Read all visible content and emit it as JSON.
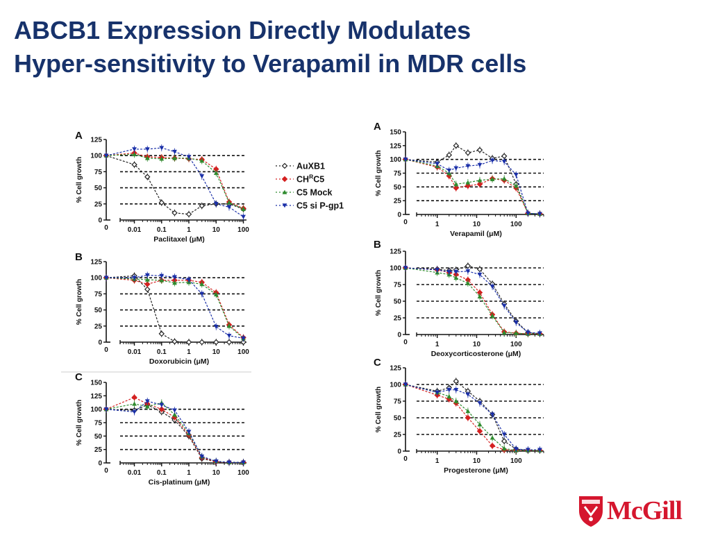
{
  "title": {
    "line1": "ABCB1 Expression Directly Modulates",
    "line2": "Hyper-sensitivity to Verapamil in MDR cells"
  },
  "legend": [
    {
      "label": "AuXB1",
      "label_sup": "",
      "label_after": "",
      "marker": "diamond-open",
      "color": "#222222"
    },
    {
      "label": "CH",
      "label_sup": "R",
      "label_after": "C5",
      "marker": "diamond",
      "color": "#d42020"
    },
    {
      "label": "C5 Mock",
      "label_sup": "",
      "label_after": "",
      "marker": "triangle-up",
      "color": "#2e8b2e"
    },
    {
      "label": "C5 si P-gp1",
      "label_sup": "",
      "label_after": "",
      "marker": "triangle-down",
      "color": "#1a2fa8"
    }
  ],
  "logo": {
    "text": "McGill",
    "color": "#d5162e"
  },
  "chart_data": [
    {
      "type": "line",
      "panel": "A",
      "xlabel": "Paclitaxel (μM)",
      "ylabel": "% Cell growth",
      "xscale": "log",
      "xlim": [
        0.003,
        130
      ],
      "ylim": [
        0,
        125
      ],
      "x_ticks": [
        0.01,
        0.1,
        1,
        10,
        100
      ],
      "x_tick_labels": [
        "0.01",
        "0.1",
        "1",
        "10",
        "100"
      ],
      "zero_tick_label": "0",
      "y_ticks": [
        0,
        25,
        50,
        75,
        100,
        125
      ],
      "grid_lines_y": [
        25,
        50,
        75,
        100
      ],
      "series": [
        {
          "x": [
            0,
            0.01,
            0.03,
            0.1,
            0.3,
            1,
            3,
            10,
            30,
            100
          ],
          "values": [
            100,
            86,
            67,
            27,
            11,
            9,
            22,
            25,
            25,
            17
          ]
        },
        {
          "x": [
            0,
            0.01,
            0.03,
            0.1,
            0.3,
            1,
            3,
            10,
            30,
            100
          ],
          "values": [
            100,
            104,
            98,
            97,
            96,
            95,
            94,
            79,
            28,
            18
          ]
        },
        {
          "x": [
            0,
            0.01,
            0.03,
            0.1,
            0.3,
            1,
            3,
            10,
            30,
            100
          ],
          "values": [
            100,
            102,
            96,
            95,
            96,
            96,
            92,
            73,
            27,
            17
          ]
        },
        {
          "x": [
            0,
            0.01,
            0.03,
            0.1,
            0.3,
            1,
            3,
            10,
            30,
            100
          ],
          "values": [
            100,
            110,
            110,
            112,
            106,
            98,
            68,
            25,
            20,
            5
          ]
        }
      ]
    },
    {
      "type": "line",
      "panel": "B",
      "xlabel": "Doxorubicin (μM)",
      "ylabel": "% Cell growth",
      "xscale": "log",
      "xlim": [
        0.003,
        130
      ],
      "ylim": [
        0,
        125
      ],
      "x_ticks": [
        0.01,
        0.1,
        1,
        10,
        100
      ],
      "x_tick_labels": [
        "0.01",
        "0.1",
        "1",
        "10",
        "100"
      ],
      "zero_tick_label": "0",
      "y_ticks": [
        0,
        25,
        50,
        75,
        100,
        125
      ],
      "grid_lines_y": [
        25,
        50,
        75,
        100
      ],
      "series": [
        {
          "x": [
            0,
            0.01,
            0.03,
            0.1,
            0.3,
            1,
            3,
            10,
            30,
            100
          ],
          "values": [
            100,
            103,
            82,
            13,
            1,
            0,
            0,
            0,
            0,
            0
          ]
        },
        {
          "x": [
            0,
            0.01,
            0.03,
            0.1,
            0.3,
            1,
            3,
            10,
            30,
            100
          ],
          "values": [
            100,
            96,
            90,
            96,
            96,
            96,
            93,
            77,
            27,
            7
          ]
        },
        {
          "x": [
            0,
            0.01,
            0.03,
            0.1,
            0.3,
            1,
            3,
            10,
            30,
            100
          ],
          "values": [
            100,
            98,
            97,
            96,
            92,
            93,
            90,
            74,
            25,
            6
          ]
        },
        {
          "x": [
            0,
            0.01,
            0.03,
            0.1,
            0.3,
            1,
            3,
            10,
            30,
            100
          ],
          "values": [
            100,
            100,
            104,
            103,
            101,
            97,
            75,
            24,
            10,
            6
          ]
        }
      ]
    },
    {
      "type": "line",
      "panel": "C",
      "xlabel": "Cis-platinum (μM)",
      "ylabel": "% Cell growth",
      "xscale": "log",
      "xlim": [
        0.003,
        130
      ],
      "ylim": [
        0,
        150
      ],
      "x_ticks": [
        0.01,
        0.1,
        1,
        10,
        100
      ],
      "x_tick_labels": [
        "0.01",
        "0.1",
        "1",
        "10",
        "100"
      ],
      "zero_tick_label": "0",
      "y_ticks": [
        0,
        25,
        50,
        75,
        100,
        125,
        150
      ],
      "grid_lines_y": [
        25,
        50,
        75,
        100
      ],
      "series": [
        {
          "x": [
            0,
            0.01,
            0.03,
            0.1,
            0.3,
            1,
            3,
            10,
            30,
            100
          ],
          "values": [
            100,
            98,
            108,
            95,
            80,
            50,
            8,
            2,
            1,
            1
          ]
        },
        {
          "x": [
            0,
            0.01,
            0.03,
            0.1,
            0.3,
            1,
            3,
            10,
            30,
            100
          ],
          "values": [
            100,
            122,
            110,
            100,
            85,
            52,
            10,
            2,
            1,
            1
          ]
        },
        {
          "x": [
            0,
            0.01,
            0.03,
            0.1,
            0.3,
            1,
            3,
            10,
            30,
            100
          ],
          "values": [
            100,
            110,
            105,
            112,
            90,
            55,
            12,
            3,
            1,
            1
          ]
        },
        {
          "x": [
            0,
            0.01,
            0.03,
            0.1,
            0.3,
            1,
            3,
            10,
            30,
            100
          ],
          "values": [
            100,
            95,
            115,
            108,
            98,
            58,
            12,
            3,
            1,
            1
          ]
        }
      ]
    },
    {
      "type": "line",
      "panel": "A",
      "xlabel": "Verapamil (μM)",
      "ylabel": "% Cell growth",
      "xscale": "log",
      "xlim": [
        0.3,
        500
      ],
      "ylim": [
        0,
        150
      ],
      "x_ticks": [
        1,
        10,
        100
      ],
      "x_tick_labels": [
        "1",
        "10",
        "100"
      ],
      "zero_tick_label": "0",
      "y_ticks": [
        0,
        25,
        50,
        75,
        100,
        125,
        150
      ],
      "grid_lines_y": [
        25,
        50,
        75,
        100
      ],
      "series": [
        {
          "x": [
            0,
            1,
            2,
            3,
            6,
            12,
            25,
            50,
            100,
            200,
            400
          ],
          "values": [
            100,
            95,
            108,
            125,
            112,
            117,
            102,
            106,
            55,
            2,
            1
          ]
        },
        {
          "x": [
            0,
            1,
            2,
            3,
            6,
            12,
            25,
            50,
            100,
            200,
            400
          ],
          "values": [
            100,
            86,
            70,
            48,
            52,
            55,
            65,
            62,
            48,
            2,
            1
          ]
        },
        {
          "x": [
            0,
            1,
            2,
            3,
            6,
            12,
            25,
            50,
            100,
            200,
            400
          ],
          "values": [
            100,
            88,
            75,
            55,
            58,
            62,
            64,
            65,
            52,
            2,
            1
          ]
        },
        {
          "x": [
            0,
            1,
            2,
            3,
            6,
            12,
            25,
            50,
            100,
            200,
            400
          ],
          "values": [
            100,
            92,
            80,
            84,
            88,
            90,
            98,
            96,
            72,
            2,
            1
          ]
        }
      ]
    },
    {
      "type": "line",
      "panel": "B",
      "xlabel": "Deoxycorticosterone (μM)",
      "ylabel": "% Cell growth",
      "xscale": "log",
      "xlim": [
        0.3,
        500
      ],
      "ylim": [
        0,
        125
      ],
      "x_ticks": [
        1,
        10,
        100
      ],
      "x_tick_labels": [
        "1",
        "10",
        "100"
      ],
      "zero_tick_label": "0",
      "y_ticks": [
        0,
        25,
        50,
        75,
        100,
        125
      ],
      "grid_lines_y": [
        25,
        50,
        75,
        100
      ],
      "series": [
        {
          "x": [
            0,
            1,
            2,
            3,
            6,
            12,
            25,
            50,
            100,
            200,
            400
          ],
          "values": [
            100,
            98,
            96,
            97,
            103,
            98,
            76,
            46,
            20,
            3,
            1
          ]
        },
        {
          "x": [
            0,
            1,
            2,
            3,
            6,
            12,
            25,
            50,
            100,
            200,
            400
          ],
          "values": [
            100,
            97,
            93,
            90,
            82,
            63,
            30,
            4,
            2,
            1,
            1
          ]
        },
        {
          "x": [
            0,
            1,
            2,
            3,
            6,
            12,
            25,
            50,
            100,
            200,
            400
          ],
          "values": [
            100,
            93,
            90,
            85,
            77,
            57,
            28,
            3,
            2,
            1,
            1
          ]
        },
        {
          "x": [
            0,
            1,
            2,
            3,
            6,
            12,
            25,
            50,
            100,
            200,
            400
          ],
          "values": [
            100,
            97,
            94,
            94,
            95,
            90,
            72,
            43,
            18,
            3,
            2
          ]
        }
      ]
    },
    {
      "type": "line",
      "panel": "C",
      "xlabel": "Progesterone (μM)",
      "ylabel": "% Cell growth",
      "xscale": "log",
      "xlim": [
        0.3,
        500
      ],
      "ylim": [
        0,
        125
      ],
      "x_ticks": [
        1,
        10,
        100
      ],
      "x_tick_labels": [
        "1",
        "10",
        "100"
      ],
      "zero_tick_label": "0",
      "y_ticks": [
        0,
        25,
        50,
        75,
        100,
        125
      ],
      "grid_lines_y": [
        25,
        50,
        75,
        100
      ],
      "series": [
        {
          "x": [
            0,
            1,
            2,
            3,
            6,
            12,
            25,
            50,
            100,
            200,
            400
          ],
          "values": [
            100,
            90,
            95,
            105,
            90,
            75,
            55,
            15,
            3,
            1,
            1
          ]
        },
        {
          "x": [
            0,
            1,
            2,
            3,
            6,
            12,
            25,
            50,
            100,
            200,
            400
          ],
          "values": [
            100,
            84,
            78,
            72,
            50,
            30,
            8,
            2,
            1,
            1,
            1
          ]
        },
        {
          "x": [
            0,
            1,
            2,
            3,
            6,
            12,
            25,
            50,
            100,
            200,
            400
          ],
          "values": [
            100,
            88,
            82,
            75,
            60,
            40,
            20,
            4,
            1,
            1,
            1
          ]
        },
        {
          "x": [
            0,
            1,
            2,
            3,
            6,
            12,
            25,
            50,
            100,
            200,
            400
          ],
          "values": [
            100,
            88,
            92,
            92,
            85,
            72,
            55,
            25,
            3,
            2,
            2
          ]
        }
      ]
    }
  ]
}
